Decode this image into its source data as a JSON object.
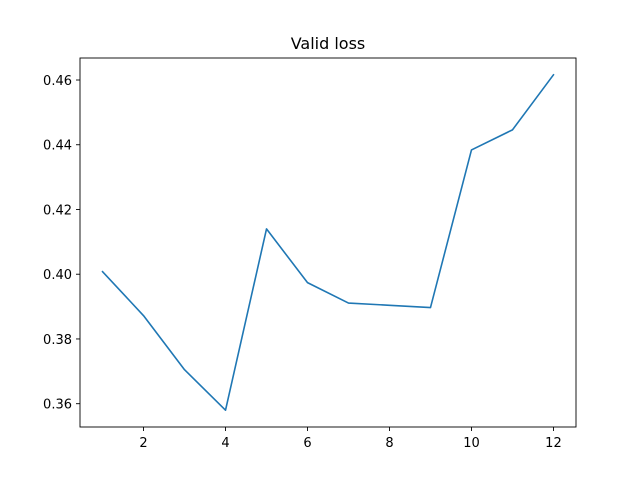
{
  "chart_data": {
    "type": "line",
    "title": "Valid loss",
    "xlabel": "",
    "ylabel": "",
    "x": [
      1,
      2,
      3,
      4,
      5,
      6,
      7,
      8,
      9,
      10,
      11,
      12
    ],
    "series": [
      {
        "values": [
          0.4008,
          0.3872,
          0.3705,
          0.358,
          0.414,
          0.3974,
          0.3911,
          0.3904,
          0.3897,
          0.4384,
          0.4446,
          0.4616
        ],
        "color": "#1f77b4"
      }
    ],
    "xlim": [
      0.45,
      12.55
    ],
    "ylim": [
      0.3528,
      0.4668
    ],
    "xticks": [
      2,
      4,
      6,
      8,
      10,
      12
    ],
    "xtick_labels": [
      "2",
      "4",
      "6",
      "8",
      "10",
      "12"
    ],
    "yticks": [
      0.36,
      0.38,
      0.4,
      0.42,
      0.44,
      0.46
    ],
    "ytick_labels": [
      "0.36",
      "0.38",
      "0.40",
      "0.42",
      "0.44",
      "0.46"
    ],
    "grid": false,
    "legend": "none"
  }
}
